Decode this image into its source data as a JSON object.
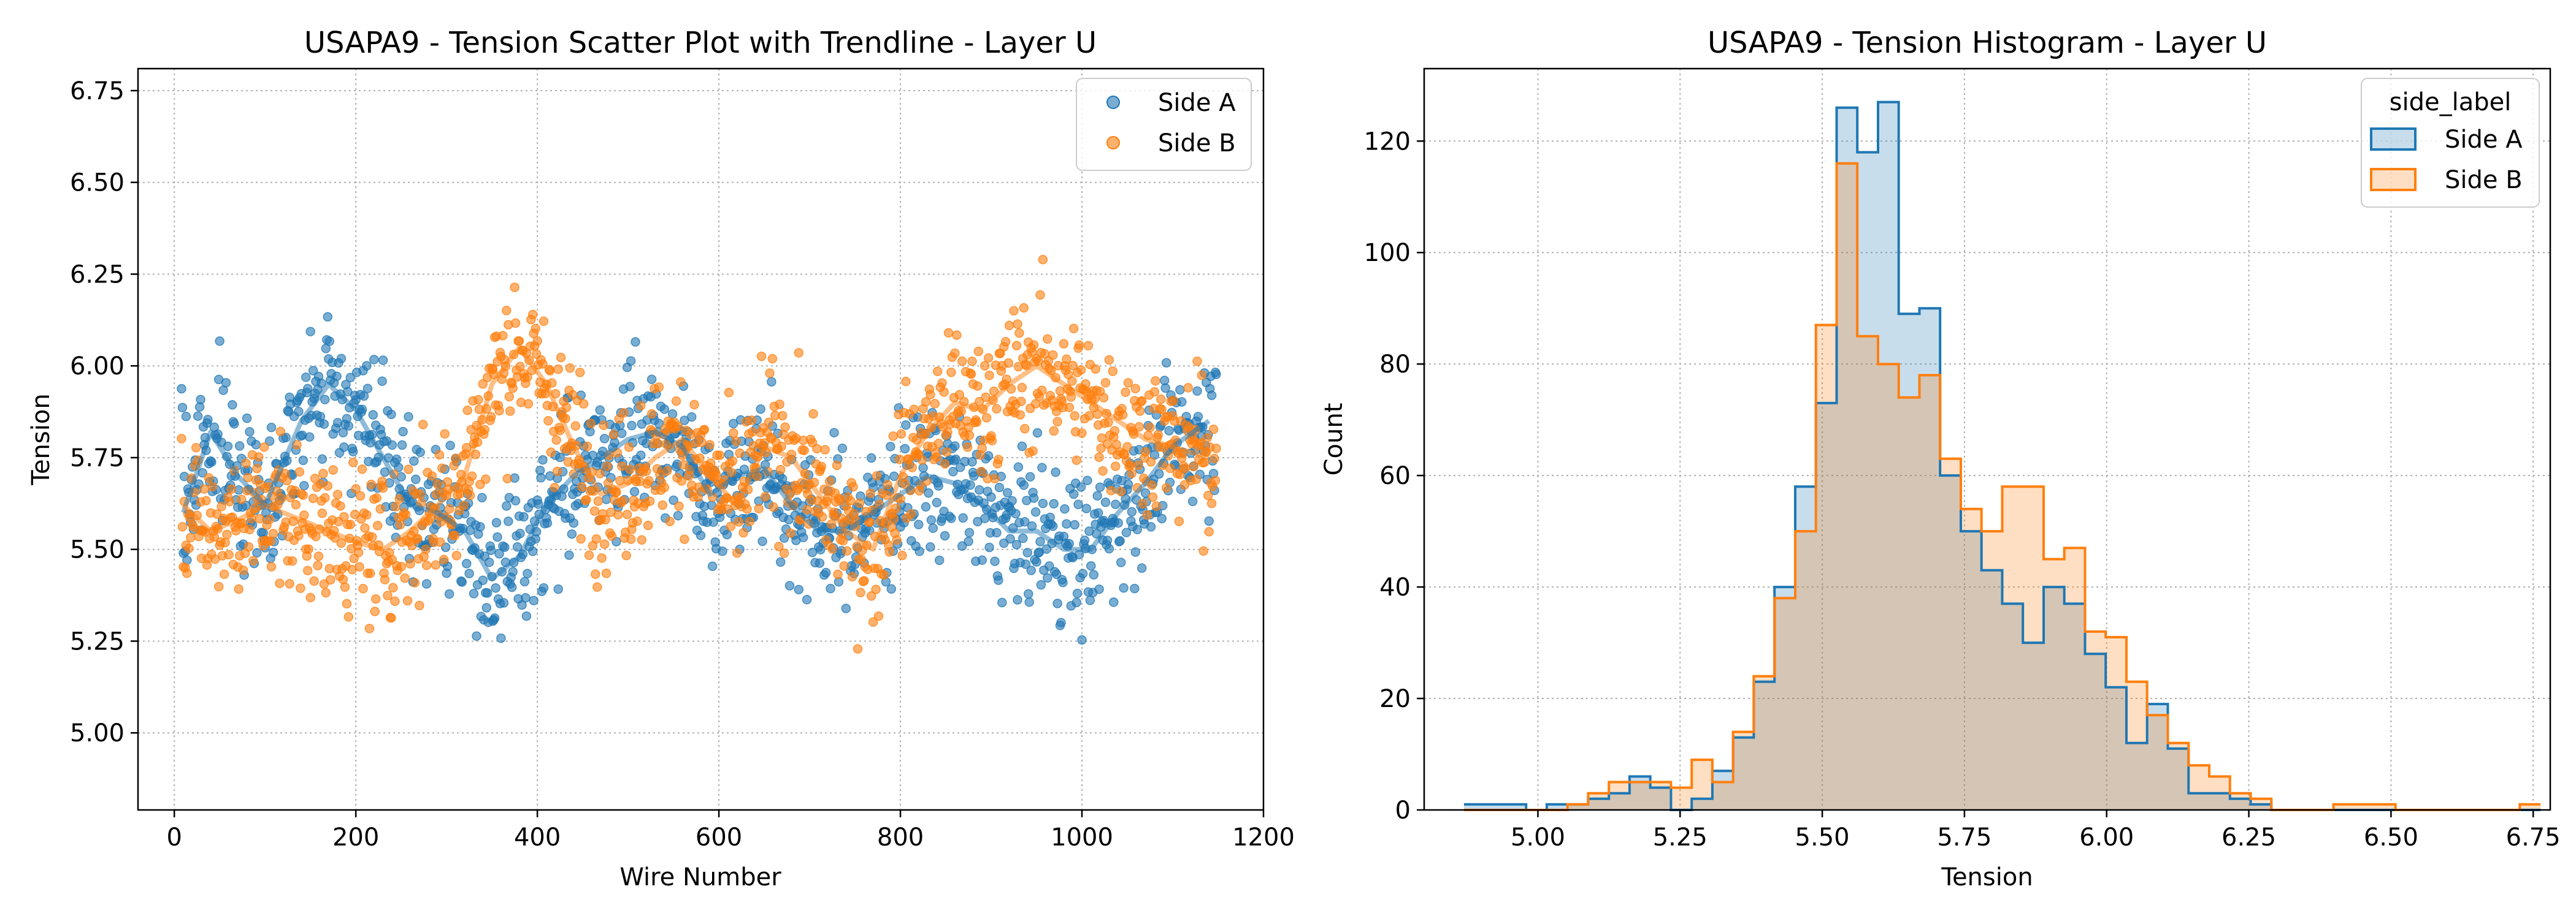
{
  "chart_data": [
    {
      "type": "scatter",
      "title": "USAPA9 - Tension Scatter Plot with Trendline - Layer U",
      "xlabel": "Wire Number",
      "ylabel": "Tension",
      "xlim": [
        -40,
        1200
      ],
      "ylim": [
        4.79,
        6.81
      ],
      "xticks": [
        0,
        200,
        400,
        600,
        800,
        1000,
        1200
      ],
      "xtick_labels": [
        "0",
        "200",
        "400",
        "600",
        "800",
        "1000",
        "1200"
      ],
      "yticks": [
        5.0,
        5.25,
        5.5,
        5.75,
        6.0,
        6.25,
        6.5,
        6.75
      ],
      "ytick_labels": [
        "5.00",
        "5.25",
        "5.50",
        "5.75",
        "6.00",
        "6.25",
        "6.50",
        "6.75"
      ],
      "grid": true,
      "legend_position": "top-right",
      "series": [
        {
          "name": "Side A",
          "color": "#1f77b4",
          "trend": [
            [
              10,
              5.6
            ],
            [
              40,
              5.82
            ],
            [
              70,
              5.7
            ],
            [
              100,
              5.62
            ],
            [
              140,
              5.85
            ],
            [
              170,
              5.95
            ],
            [
              200,
              5.88
            ],
            [
              230,
              5.75
            ],
            [
              260,
              5.62
            ],
            [
              290,
              5.6
            ],
            [
              320,
              5.55
            ],
            [
              350,
              5.42
            ],
            [
              380,
              5.48
            ],
            [
              410,
              5.62
            ],
            [
              440,
              5.7
            ],
            [
              470,
              5.75
            ],
            [
              500,
              5.8
            ],
            [
              530,
              5.82
            ],
            [
              560,
              5.78
            ],
            [
              590,
              5.65
            ],
            [
              620,
              5.7
            ],
            [
              650,
              5.72
            ],
            [
              680,
              5.62
            ],
            [
              710,
              5.55
            ],
            [
              740,
              5.55
            ],
            [
              770,
              5.6
            ],
            [
              800,
              5.65
            ],
            [
              830,
              5.7
            ],
            [
              860,
              5.68
            ],
            [
              890,
              5.62
            ],
            [
              920,
              5.55
            ],
            [
              950,
              5.55
            ],
            [
              980,
              5.5
            ],
            [
              1010,
              5.5
            ],
            [
              1040,
              5.6
            ],
            [
              1070,
              5.68
            ],
            [
              1100,
              5.78
            ],
            [
              1140,
              5.85
            ]
          ]
        },
        {
          "name": "Side B",
          "color": "#ff7f0e",
          "trend": [
            [
              10,
              5.62
            ],
            [
              40,
              5.55
            ],
            [
              70,
              5.58
            ],
            [
              100,
              5.62
            ],
            [
              140,
              5.58
            ],
            [
              170,
              5.55
            ],
            [
              200,
              5.52
            ],
            [
              230,
              5.5
            ],
            [
              260,
              5.55
            ],
            [
              290,
              5.62
            ],
            [
              320,
              5.7
            ],
            [
              350,
              5.95
            ],
            [
              380,
              6.05
            ],
            [
              410,
              5.95
            ],
            [
              440,
              5.78
            ],
            [
              470,
              5.65
            ],
            [
              500,
              5.68
            ],
            [
              530,
              5.75
            ],
            [
              560,
              5.8
            ],
            [
              590,
              5.7
            ],
            [
              620,
              5.62
            ],
            [
              650,
              5.78
            ],
            [
              680,
              5.75
            ],
            [
              710,
              5.65
            ],
            [
              740,
              5.55
            ],
            [
              770,
              5.5
            ],
            [
              800,
              5.7
            ],
            [
              830,
              5.82
            ],
            [
              860,
              5.9
            ],
            [
              890,
              5.88
            ],
            [
              920,
              5.95
            ],
            [
              950,
              6.0
            ],
            [
              980,
              5.95
            ],
            [
              1010,
              5.9
            ],
            [
              1040,
              5.85
            ],
            [
              1070,
              5.8
            ],
            [
              1100,
              5.78
            ],
            [
              1140,
              5.75
            ]
          ]
        }
      ]
    },
    {
      "type": "histogram",
      "title": "USAPA9 - Tension Histogram - Layer U",
      "xlabel": "Tension",
      "ylabel": "Count",
      "xlim": [
        4.8,
        6.78
      ],
      "ylim": [
        0,
        133
      ],
      "xticks": [
        5.0,
        5.25,
        5.5,
        5.75,
        6.0,
        6.25,
        6.5,
        6.75
      ],
      "xtick_labels": [
        "5.00",
        "5.25",
        "5.50",
        "5.75",
        "6.00",
        "6.25",
        "6.50",
        "6.75"
      ],
      "yticks": [
        0,
        20,
        40,
        60,
        80,
        100,
        120
      ],
      "ytick_labels": [
        "0",
        "20",
        "40",
        "60",
        "80",
        "100",
        "120"
      ],
      "grid": true,
      "legend_title": "side_label",
      "legend_position": "top-right",
      "bin_start": 4.87,
      "bin_width": 0.0364,
      "series": [
        {
          "name": "Side A",
          "color": "#1f77b4",
          "counts": [
            1,
            1,
            1,
            0,
            1,
            1,
            2,
            3,
            6,
            4,
            0,
            2,
            7,
            13,
            23,
            40,
            58,
            73,
            126,
            118,
            127,
            89,
            90,
            60,
            50,
            43,
            37,
            30,
            40,
            37,
            28,
            22,
            12,
            19,
            11,
            3,
            3,
            2,
            1,
            0,
            0,
            0,
            0,
            0,
            0,
            0,
            0,
            0,
            0,
            0,
            0,
            0
          ]
        },
        {
          "name": "Side B",
          "color": "#ff7f0e",
          "counts": [
            0,
            0,
            0,
            0,
            0,
            1,
            3,
            5,
            5,
            5,
            4,
            9,
            5,
            14,
            24,
            38,
            50,
            87,
            116,
            85,
            80,
            74,
            78,
            63,
            54,
            50,
            58,
            58,
            45,
            47,
            32,
            31,
            23,
            17,
            12,
            8,
            6,
            3,
            2,
            0,
            0,
            0,
            1,
            1,
            1,
            0,
            0,
            0,
            0,
            0,
            0,
            1
          ]
        }
      ]
    }
  ]
}
